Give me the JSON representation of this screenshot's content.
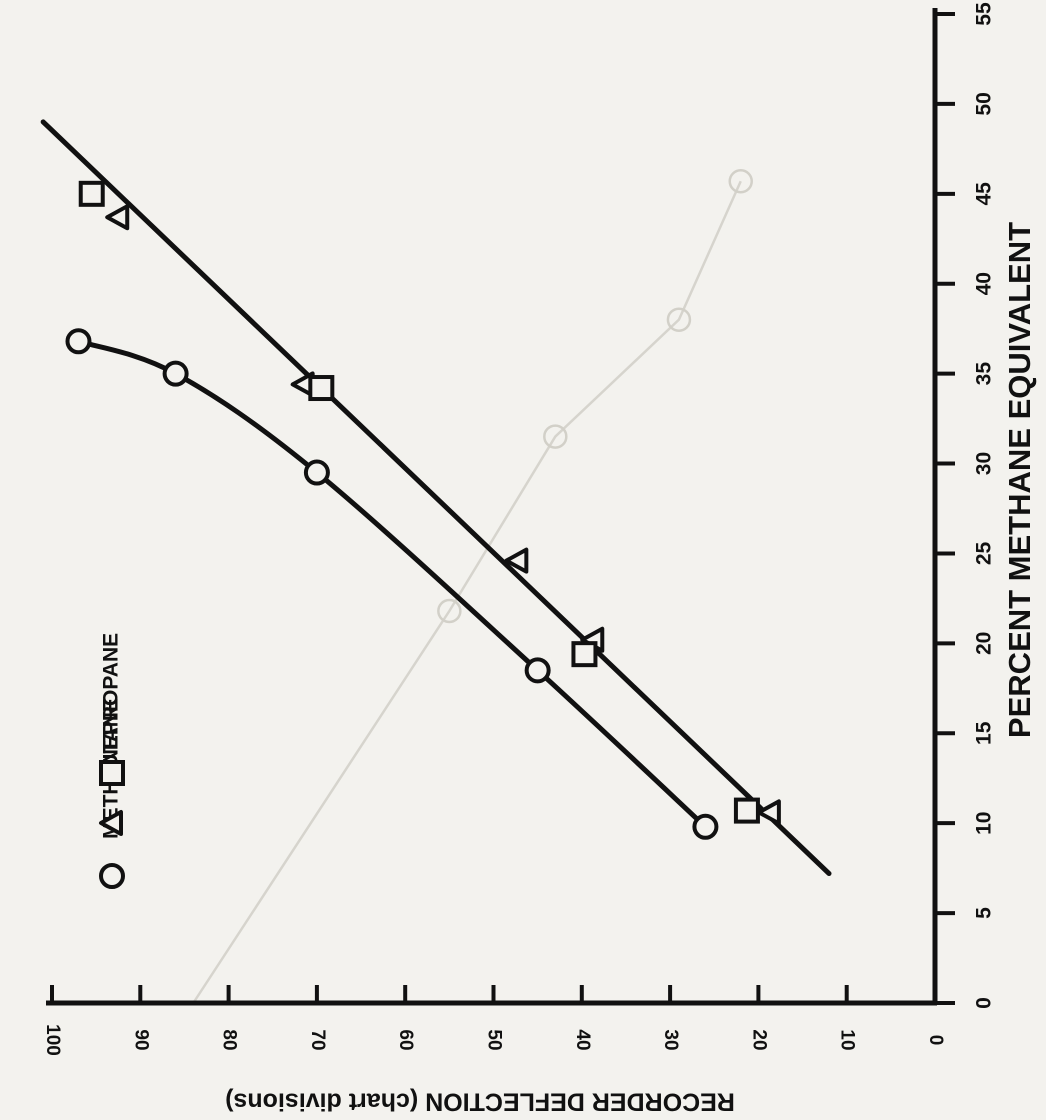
{
  "chart_data": {
    "type": "scatter",
    "orientation": "rotated-90",
    "xlabel": "PERCENT METHANE EQUIVALENT",
    "ylabel": "RECORDER DEFLECTION (chart divisions)",
    "xlim": [
      0,
      55
    ],
    "ylim": [
      0,
      100
    ],
    "x_ticks": [
      0,
      5,
      10,
      15,
      20,
      25,
      30,
      35,
      40,
      45,
      50,
      55
    ],
    "y_ticks": [
      0,
      10,
      20,
      30,
      40,
      50,
      60,
      70,
      80,
      90,
      100
    ],
    "grid": false,
    "legend_position": "top-left",
    "series": [
      {
        "name": "METHANE",
        "marker": "circle",
        "points": [
          {
            "x": 9.8,
            "y": 26
          },
          {
            "x": 18.5,
            "y": 45
          },
          {
            "x": 29.5,
            "y": 70
          },
          {
            "x": 35,
            "y": 86
          },
          {
            "x": 36.8,
            "y": 97
          }
        ],
        "fit_curve": [
          {
            "x": 9.8,
            "y": 26
          },
          {
            "x": 18.5,
            "y": 45
          },
          {
            "x": 29.5,
            "y": 70
          },
          {
            "x": 35,
            "y": 86
          },
          {
            "x": 36.8,
            "y": 97
          }
        ]
      },
      {
        "name": "BUTANE",
        "marker": "triangle",
        "points": [
          {
            "x": 10.6,
            "y": 18.7
          },
          {
            "x": 20.2,
            "y": 38.7
          },
          {
            "x": 24.6,
            "y": 47.3
          },
          {
            "x": 34.4,
            "y": 71.5
          },
          {
            "x": 43.7,
            "y": 92.5
          }
        ]
      },
      {
        "name": "PROPANE",
        "marker": "square",
        "points": [
          {
            "x": 10.7,
            "y": 21.3
          },
          {
            "x": 19.4,
            "y": 39.7
          },
          {
            "x": 34.2,
            "y": 69.5
          },
          {
            "x": 45,
            "y": 95.5
          }
        ]
      }
    ],
    "fit_line_butane_propane": [
      {
        "x": 7.2,
        "y": 12
      },
      {
        "x": 49,
        "y": 101
      }
    ],
    "background_trace": [
      {
        "x": 0,
        "y": 84
      },
      {
        "x": 21.8,
        "y": 55
      },
      {
        "x": 31.5,
        "y": 43
      },
      {
        "x": 38,
        "y": 29
      },
      {
        "x": 45.7,
        "y": 22
      }
    ]
  }
}
